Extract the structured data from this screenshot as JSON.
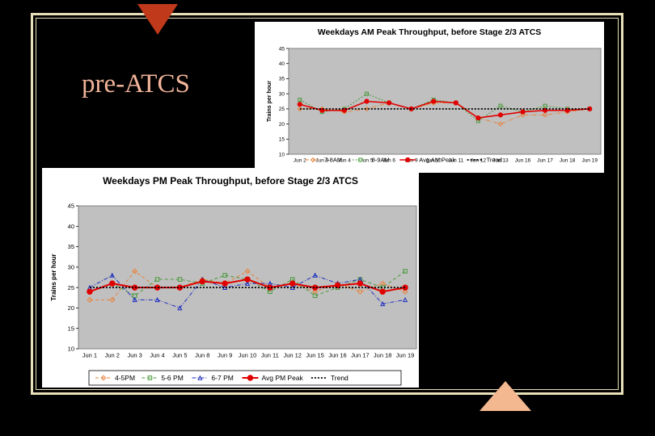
{
  "slide": {
    "title": "pre-ATCS",
    "colors": {
      "background": "#000000",
      "frame": "#e8e0b8",
      "title": "#f2b49a",
      "triangle_top": "#c0391b",
      "triangle_bottom": "#f4b890"
    }
  },
  "chart_data": [
    {
      "type": "line",
      "title": "Weekdays AM Peak Throughput, before Stage 2/3 ATCS",
      "xlabel": "",
      "ylabel": "Trains per hour",
      "ylim": [
        10,
        45
      ],
      "yticks": [
        10,
        15,
        20,
        25,
        30,
        35,
        40,
        45
      ],
      "grid": false,
      "legend_position": "bottom",
      "categories": [
        "Jun 2",
        "Jun 3",
        "Jun 4",
        "Jun 5",
        "Jun 6",
        "Jun 9",
        "Jun 10",
        "Jun 11",
        "Jun 12",
        "Jun 13",
        "Jun 16",
        "Jun 17",
        "Jun 18",
        "Jun 19"
      ],
      "series": [
        {
          "name": "7-8AM",
          "color": "#e8823a",
          "style": "dashdot",
          "marker": "diamond",
          "values": [
            25,
            25,
            24,
            25,
            27,
            25,
            27,
            27,
            22,
            20,
            23,
            23,
            24,
            25
          ]
        },
        {
          "name": "8-9AM",
          "color": "#4a9a3c",
          "style": "dotted",
          "marker": "square",
          "values": [
            28,
            24,
            25,
            30,
            27,
            25,
            28,
            27,
            21,
            26,
            24,
            26,
            25,
            25
          ]
        },
        {
          "name": "Avg AM Peak",
          "color": "#e00000",
          "style": "solid",
          "marker": "circle",
          "values": [
            26.5,
            24.5,
            24.5,
            27.5,
            27,
            25,
            27.5,
            27,
            22,
            23,
            24,
            24.5,
            24.5,
            25
          ]
        },
        {
          "name": "Trend",
          "color": "#000000",
          "style": "dotted",
          "marker": "none",
          "values": [
            25,
            25,
            25,
            25,
            25,
            25,
            25,
            25,
            25,
            25,
            25,
            25,
            25,
            25
          ]
        }
      ]
    },
    {
      "type": "line",
      "title": "Weekdays PM Peak Throughput, before Stage 2/3 ATCS",
      "xlabel": "",
      "ylabel": "Trains per hour",
      "ylim": [
        10,
        45
      ],
      "yticks": [
        10,
        15,
        20,
        25,
        30,
        35,
        40,
        45
      ],
      "grid": false,
      "legend_position": "bottom",
      "categories": [
        "Jun 1",
        "Jun 2",
        "Jun 3",
        "Jun 4",
        "Jun 5",
        "Jun 8",
        "Jun 9",
        "Jun 10",
        "Jun 11",
        "Jun 12",
        "Jun 15",
        "Jun 16",
        "Jun 17",
        "Jun 18",
        "Jun 19"
      ],
      "series": [
        {
          "name": "4-5PM",
          "color": "#e8823a",
          "style": "dashed",
          "marker": "diamond",
          "values": [
            22,
            22,
            29,
            25,
            25,
            27,
            26,
            29,
            25,
            26,
            24,
            26,
            24,
            26,
            24
          ]
        },
        {
          "name": "5-6 PM",
          "color": "#4a9a3c",
          "style": "dashed",
          "marker": "square",
          "values": [
            24,
            26,
            23,
            27,
            27,
            26,
            28,
            27,
            24,
            27,
            23,
            25,
            27,
            25,
            29
          ]
        },
        {
          "name": "6-7 PM",
          "color": "#2030c0",
          "style": "dashdot",
          "marker": "triangle",
          "values": [
            25,
            28,
            22,
            22,
            20,
            27,
            25,
            26,
            26,
            25,
            28,
            26,
            27,
            21,
            22
          ]
        },
        {
          "name": "Avg PM Peak",
          "color": "#e00000",
          "style": "solid",
          "marker": "circle",
          "values": [
            24,
            26,
            25,
            25,
            25,
            26.5,
            26,
            27,
            25,
            26,
            25,
            25.5,
            26,
            24,
            25
          ]
        },
        {
          "name": "Trend",
          "color": "#000000",
          "style": "dotted",
          "marker": "none",
          "values": [
            25,
            25,
            25,
            25,
            25,
            25,
            25,
            25,
            25,
            25,
            25,
            25,
            25,
            25,
            25
          ]
        }
      ]
    }
  ]
}
